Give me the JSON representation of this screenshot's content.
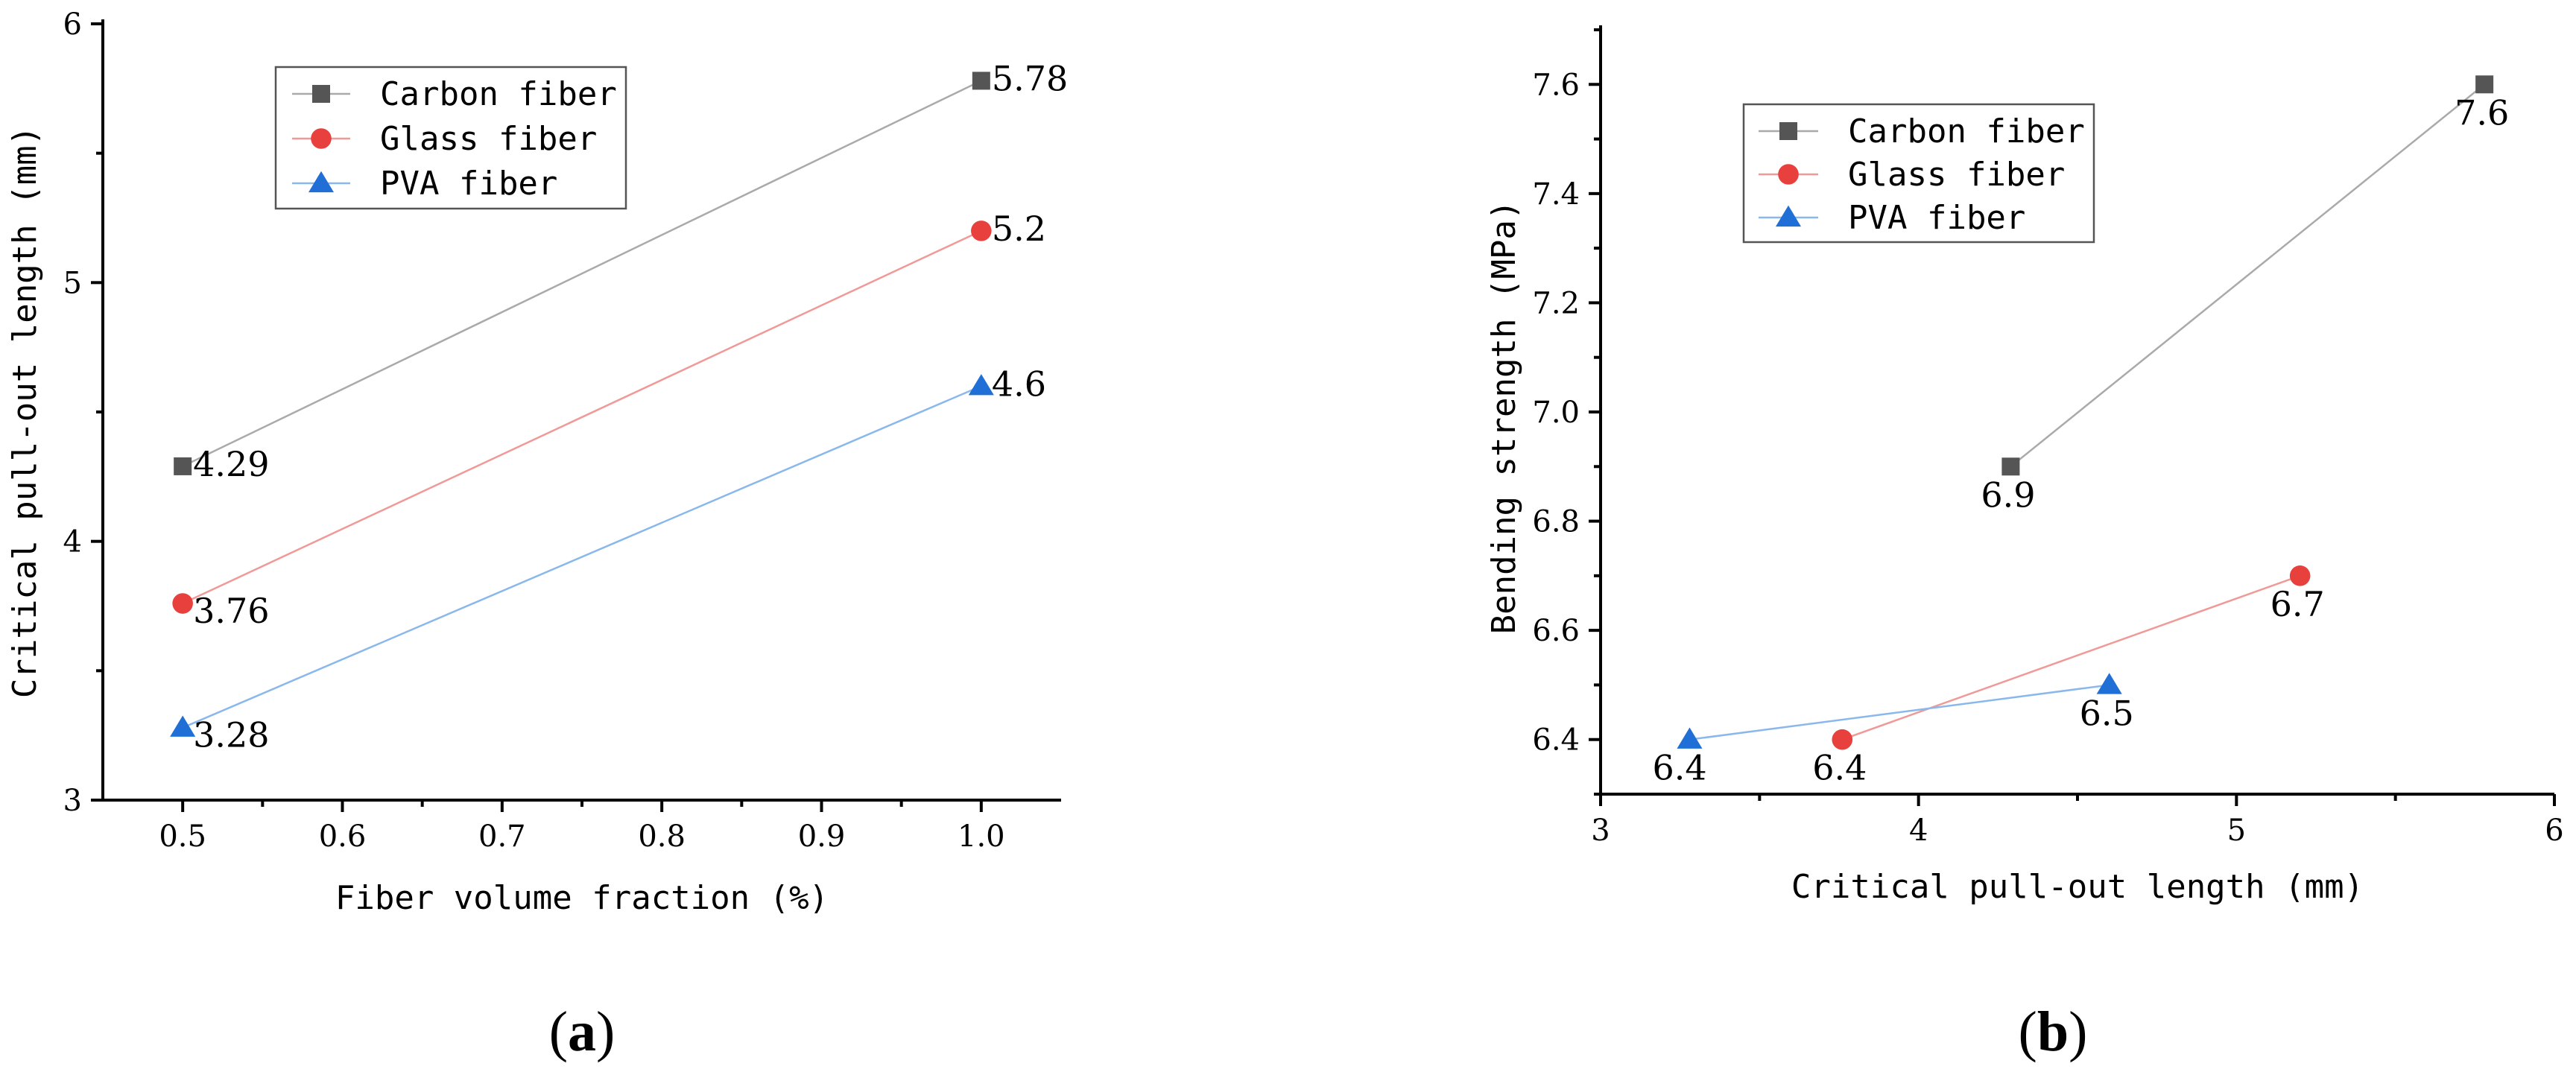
{
  "chart_data": [
    {
      "type": "line",
      "panel_label": {
        "open": "(",
        "letter": "a",
        "close": ")"
      },
      "xlabel": "Fiber volume fraction (%)",
      "ylabel": "Critical pull-out length (mm)",
      "xlim": [
        0.45,
        1.05
      ],
      "ylim": [
        3,
        6
      ],
      "xticks": [
        0.5,
        0.6,
        0.7,
        0.8,
        0.9,
        1.0
      ],
      "xtick_labels": [
        "0.5",
        "0.6",
        "0.7",
        "0.8",
        "0.9",
        "1.0"
      ],
      "yticks": [
        3,
        4,
        5,
        6
      ],
      "ytick_labels": [
        "3",
        "4",
        "5",
        "6"
      ],
      "legend_position": "top-left",
      "series": [
        {
          "name": "Carbon fiber",
          "color": "#555555",
          "line_color": "#aaaaaa",
          "marker": "square",
          "points": [
            {
              "x": 0.5,
              "y": 4.29,
              "label": "4.29"
            },
            {
              "x": 1.0,
              "y": 5.78,
              "label": "5.78"
            }
          ]
        },
        {
          "name": "Glass fiber",
          "color": "#e8403c",
          "line_color": "#f09a98",
          "marker": "circle",
          "points": [
            {
              "x": 0.5,
              "y": 3.76,
              "label": "3.76"
            },
            {
              "x": 1.0,
              "y": 5.2,
              "label": "5.2"
            }
          ]
        },
        {
          "name": "PVA fiber",
          "color": "#1f6fd6",
          "line_color": "#8ab8ec",
          "marker": "triangle",
          "points": [
            {
              "x": 0.5,
              "y": 3.28,
              "label": "3.28"
            },
            {
              "x": 1.0,
              "y": 4.6,
              "label": "4.6"
            }
          ]
        }
      ]
    },
    {
      "type": "line",
      "panel_label": {
        "open": "(",
        "letter": "b",
        "close": ")"
      },
      "xlabel": "Critical pull-out length (mm)",
      "ylabel": "Bending strength (MPa)",
      "xlim": [
        3,
        6
      ],
      "ylim": [
        6.3,
        7.7
      ],
      "xticks": [
        3,
        4,
        5,
        6
      ],
      "xtick_labels": [
        "3",
        "4",
        "5",
        "6"
      ],
      "yticks": [
        6.4,
        6.6,
        6.8,
        7.0,
        7.2,
        7.4,
        7.6
      ],
      "ytick_labels": [
        "6.4",
        "6.6",
        "6.8",
        "7.0",
        "7.2",
        "7.4",
        "7.6"
      ],
      "legend_position": "top-left",
      "series": [
        {
          "name": "Carbon fiber",
          "color": "#555555",
          "line_color": "#aaaaaa",
          "marker": "square",
          "points": [
            {
              "x": 4.29,
              "y": 6.9,
              "label": "6.9"
            },
            {
              "x": 5.78,
              "y": 7.6,
              "label": "7.6"
            }
          ]
        },
        {
          "name": "Glass fiber",
          "color": "#e8403c",
          "line_color": "#f09a98",
          "marker": "circle",
          "points": [
            {
              "x": 3.76,
              "y": 6.4,
              "label": "6.4"
            },
            {
              "x": 5.2,
              "y": 6.7,
              "label": "6.7"
            }
          ]
        },
        {
          "name": "PVA fiber",
          "color": "#1f6fd6",
          "line_color": "#8ab8ec",
          "marker": "triangle",
          "points": [
            {
              "x": 3.28,
              "y": 6.4,
              "label": "6.4"
            },
            {
              "x": 4.6,
              "y": 6.5,
              "label": "6.5"
            }
          ]
        }
      ]
    }
  ]
}
